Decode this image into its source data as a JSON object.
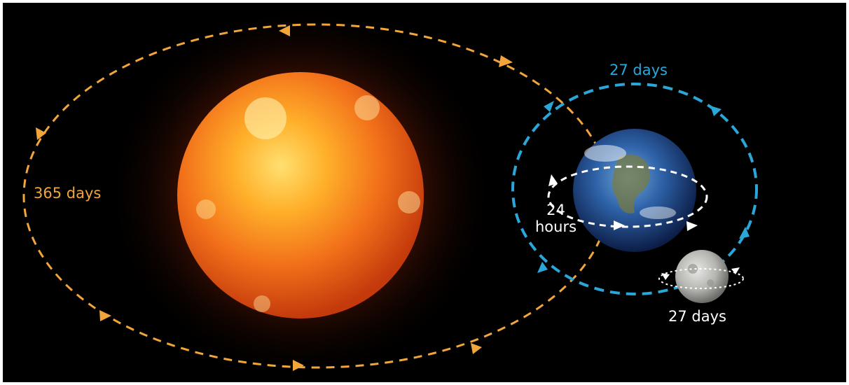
{
  "colors": {
    "earth_orbit": "#f2a53a",
    "moon_orbit": "#2aa7d8",
    "spin": "#ffffff",
    "background": "#000000"
  },
  "labels": {
    "earth_orbit_period": "365 days",
    "moon_orbit_period": "27 days",
    "earth_rotation_period_line1": "24",
    "earth_rotation_period_line2": "hours",
    "moon_rotation_period": "27 days"
  }
}
